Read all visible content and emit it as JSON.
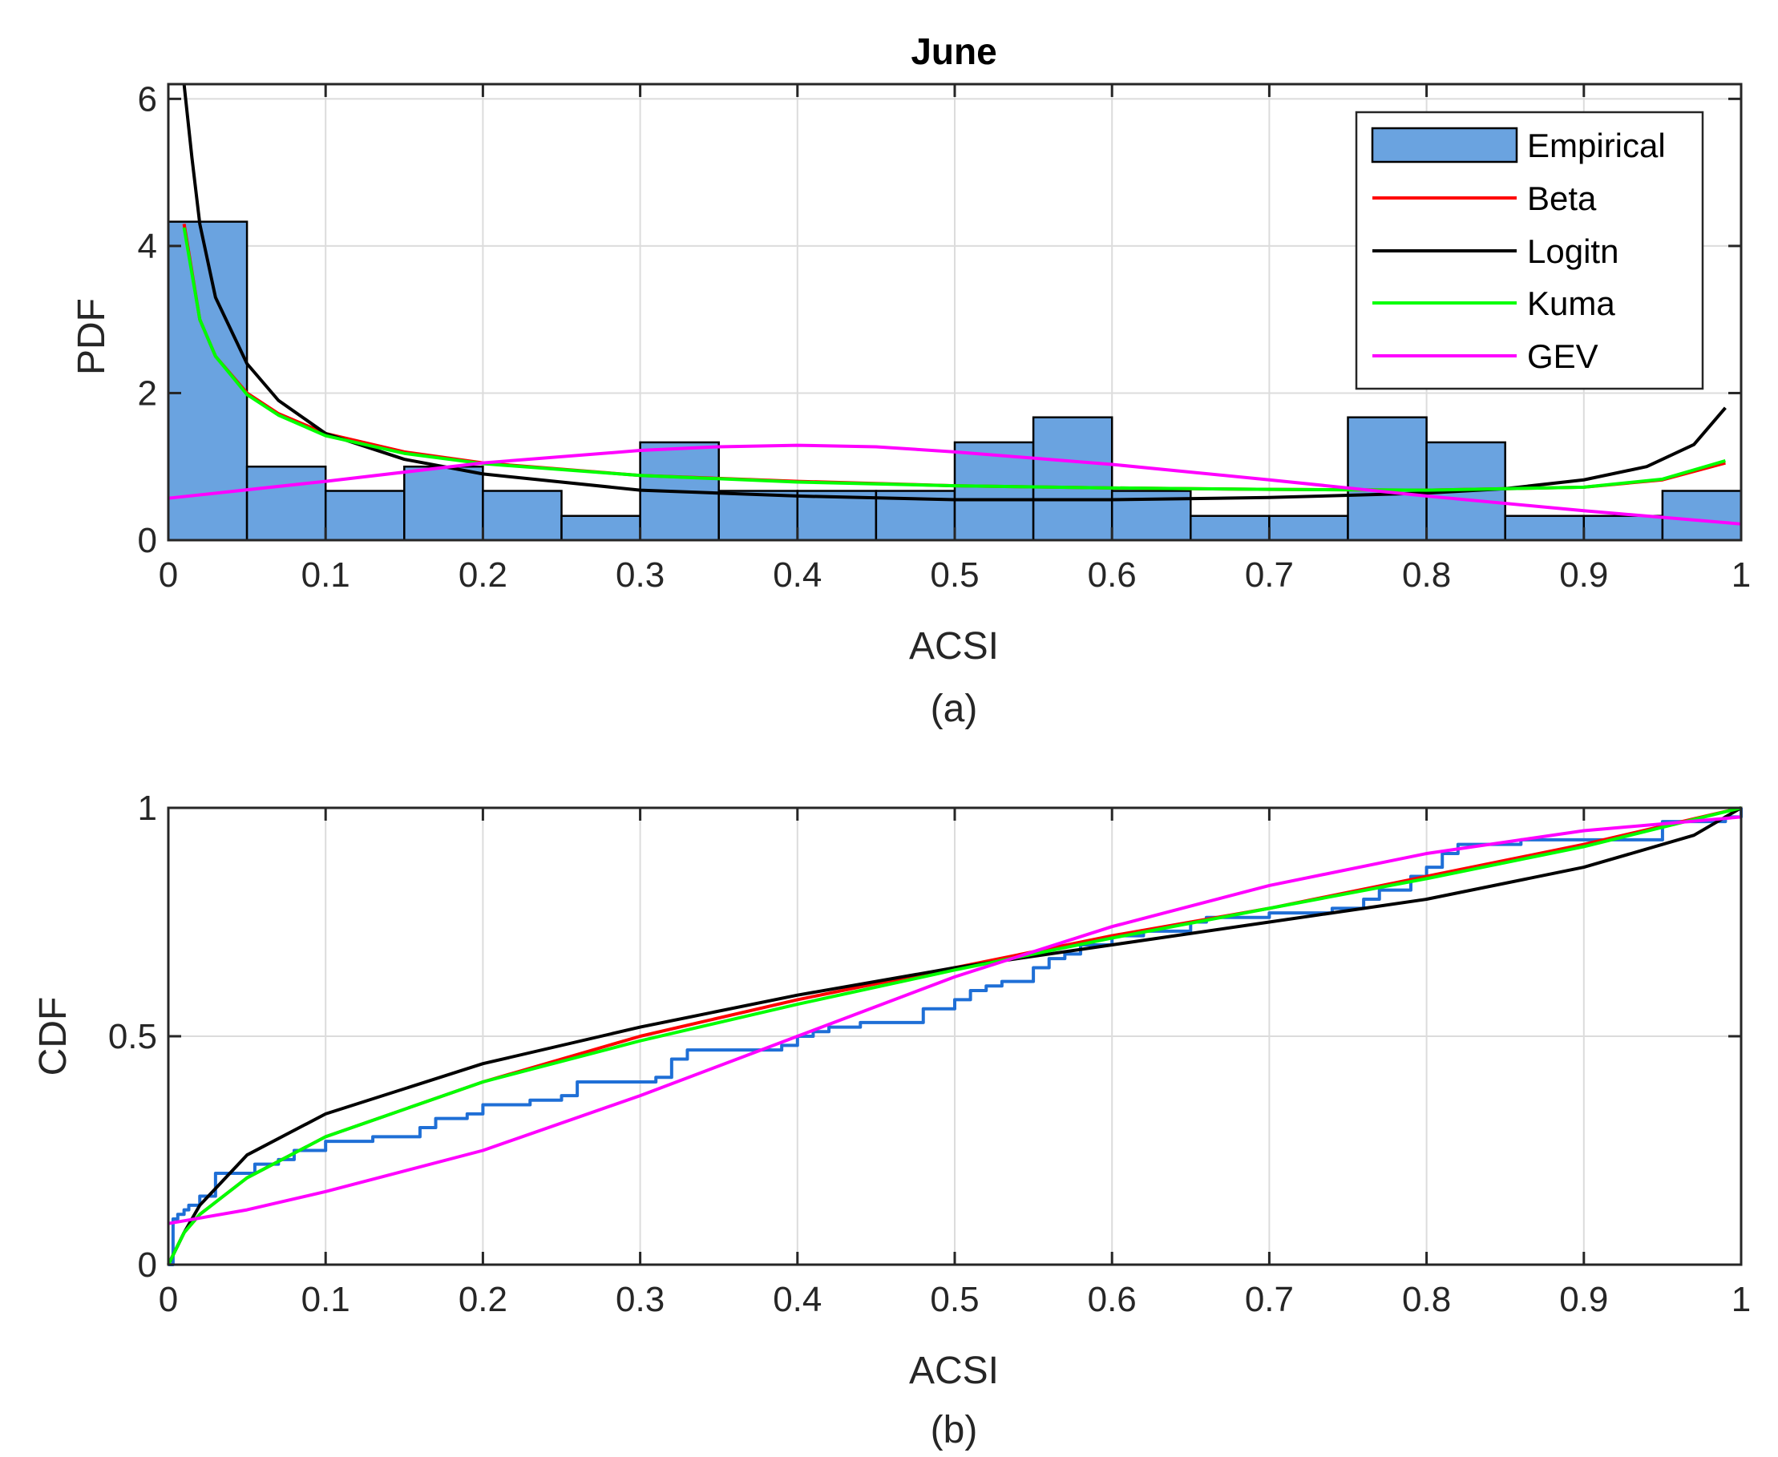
{
  "chart_data": [
    {
      "type": "bar",
      "panel_label": "(a)",
      "title": "June",
      "xlabel": "ACSI",
      "ylabel": "PDF",
      "xlim": [
        0,
        1
      ],
      "ylim": [
        0,
        6.2
      ],
      "xticks": [
        "0",
        "0.1",
        "0.2",
        "0.3",
        "0.4",
        "0.5",
        "0.6",
        "0.7",
        "0.8",
        "0.9",
        "1"
      ],
      "yticks": [
        "0",
        "2",
        "4",
        "6"
      ],
      "grid": true,
      "legend": {
        "position": "top-right",
        "entries": [
          "Empirical",
          "Beta",
          "Logitn",
          "Kuma",
          "GEV"
        ]
      },
      "histogram": {
        "name": "Empirical",
        "bin_edges": [
          0,
          0.05,
          0.1,
          0.15,
          0.2,
          0.25,
          0.3,
          0.35,
          0.4,
          0.45,
          0.5,
          0.55,
          0.6,
          0.65,
          0.7,
          0.75,
          0.8,
          0.85,
          0.9,
          0.95,
          1.0
        ],
        "values": [
          4.33,
          1.0,
          0.67,
          1.0,
          0.67,
          0.33,
          1.33,
          0.67,
          0.67,
          0.67,
          1.33,
          1.67,
          0.67,
          0.33,
          0.33,
          1.67,
          1.33,
          0.33,
          0.33,
          0.67
        ],
        "fill": "#6aa3e0"
      },
      "series": [
        {
          "name": "Beta",
          "color": "#ff0000",
          "x": [
            0.01,
            0.02,
            0.03,
            0.05,
            0.07,
            0.1,
            0.15,
            0.2,
            0.3,
            0.4,
            0.5,
            0.6,
            0.7,
            0.8,
            0.9,
            0.95,
            0.99
          ],
          "y": [
            4.3,
            3.0,
            2.5,
            2.0,
            1.72,
            1.45,
            1.2,
            1.05,
            0.88,
            0.8,
            0.74,
            0.71,
            0.69,
            0.68,
            0.72,
            0.82,
            1.05
          ]
        },
        {
          "name": "Logitn",
          "color": "#000000",
          "x": [
            0.01,
            0.015,
            0.02,
            0.03,
            0.05,
            0.07,
            0.1,
            0.15,
            0.2,
            0.3,
            0.4,
            0.5,
            0.6,
            0.7,
            0.8,
            0.85,
            0.9,
            0.94,
            0.97,
            0.99
          ],
          "y": [
            6.2,
            5.2,
            4.3,
            3.3,
            2.4,
            1.9,
            1.45,
            1.1,
            0.9,
            0.68,
            0.6,
            0.55,
            0.55,
            0.58,
            0.64,
            0.7,
            0.82,
            1.0,
            1.3,
            1.8
          ]
        },
        {
          "name": "Kuma",
          "color": "#00ff00",
          "x": [
            0.01,
            0.02,
            0.03,
            0.05,
            0.07,
            0.1,
            0.15,
            0.2,
            0.3,
            0.4,
            0.5,
            0.6,
            0.7,
            0.8,
            0.9,
            0.95,
            0.99
          ],
          "y": [
            4.25,
            3.0,
            2.5,
            1.98,
            1.7,
            1.42,
            1.18,
            1.04,
            0.88,
            0.79,
            0.74,
            0.71,
            0.69,
            0.68,
            0.72,
            0.83,
            1.08
          ]
        },
        {
          "name": "GEV",
          "color": "#ff00ff",
          "x": [
            0.0,
            0.1,
            0.2,
            0.3,
            0.35,
            0.4,
            0.45,
            0.5,
            0.6,
            0.7,
            0.8,
            0.9,
            1.0
          ],
          "y": [
            0.57,
            0.8,
            1.05,
            1.22,
            1.27,
            1.29,
            1.27,
            1.2,
            1.03,
            0.82,
            0.6,
            0.4,
            0.22
          ]
        }
      ]
    },
    {
      "type": "line",
      "panel_label": "(b)",
      "xlabel": "ACSI",
      "ylabel": "CDF",
      "xlim": [
        0,
        1
      ],
      "ylim": [
        0,
        1
      ],
      "xticks": [
        "0",
        "0.1",
        "0.2",
        "0.3",
        "0.4",
        "0.5",
        "0.6",
        "0.7",
        "0.8",
        "0.9",
        "1"
      ],
      "yticks": [
        "0",
        "0.5",
        "1"
      ],
      "grid": true,
      "series": [
        {
          "name": "Empirical",
          "color": "#1f6fd6",
          "step": true,
          "x": [
            0,
            0.003,
            0.006,
            0.01,
            0.013,
            0.02,
            0.03,
            0.055,
            0.07,
            0.08,
            0.1,
            0.13,
            0.16,
            0.17,
            0.19,
            0.2,
            0.23,
            0.25,
            0.26,
            0.31,
            0.32,
            0.33,
            0.39,
            0.4,
            0.41,
            0.42,
            0.44,
            0.48,
            0.5,
            0.51,
            0.52,
            0.53,
            0.55,
            0.56,
            0.57,
            0.58,
            0.6,
            0.62,
            0.65,
            0.66,
            0.7,
            0.74,
            0.76,
            0.77,
            0.79,
            0.8,
            0.81,
            0.82,
            0.86,
            0.95,
            0.99,
            1.0
          ],
          "y": [
            0.0,
            0.1,
            0.11,
            0.12,
            0.13,
            0.15,
            0.2,
            0.22,
            0.23,
            0.25,
            0.27,
            0.28,
            0.3,
            0.32,
            0.33,
            0.35,
            0.36,
            0.37,
            0.4,
            0.41,
            0.45,
            0.47,
            0.48,
            0.5,
            0.51,
            0.52,
            0.53,
            0.56,
            0.58,
            0.6,
            0.61,
            0.62,
            0.65,
            0.67,
            0.68,
            0.7,
            0.72,
            0.73,
            0.75,
            0.76,
            0.77,
            0.78,
            0.8,
            0.82,
            0.85,
            0.87,
            0.9,
            0.92,
            0.93,
            0.97,
            0.98,
            1.0
          ]
        },
        {
          "name": "Beta",
          "color": "#ff0000",
          "x": [
            0,
            0.01,
            0.02,
            0.05,
            0.1,
            0.2,
            0.3,
            0.4,
            0.5,
            0.6,
            0.7,
            0.8,
            0.9,
            1.0
          ],
          "y": [
            0.0,
            0.07,
            0.11,
            0.19,
            0.28,
            0.4,
            0.5,
            0.58,
            0.65,
            0.72,
            0.78,
            0.85,
            0.92,
            1.0
          ]
        },
        {
          "name": "Logitn",
          "color": "#000000",
          "x": [
            0,
            0.01,
            0.02,
            0.05,
            0.1,
            0.2,
            0.3,
            0.4,
            0.5,
            0.6,
            0.7,
            0.8,
            0.9,
            0.97,
            1.0
          ],
          "y": [
            0.0,
            0.07,
            0.13,
            0.24,
            0.33,
            0.44,
            0.52,
            0.59,
            0.65,
            0.7,
            0.75,
            0.8,
            0.87,
            0.94,
            1.0
          ]
        },
        {
          "name": "Kuma",
          "color": "#00ff00",
          "x": [
            0,
            0.01,
            0.02,
            0.05,
            0.1,
            0.2,
            0.3,
            0.4,
            0.5,
            0.6,
            0.7,
            0.8,
            0.9,
            1.0
          ],
          "y": [
            0.0,
            0.07,
            0.11,
            0.19,
            0.28,
            0.4,
            0.49,
            0.57,
            0.645,
            0.715,
            0.78,
            0.845,
            0.915,
            1.0
          ]
        },
        {
          "name": "GEV",
          "color": "#ff00ff",
          "x": [
            0,
            0.05,
            0.1,
            0.2,
            0.3,
            0.4,
            0.5,
            0.6,
            0.7,
            0.8,
            0.9,
            1.0
          ],
          "y": [
            0.09,
            0.12,
            0.16,
            0.25,
            0.37,
            0.5,
            0.63,
            0.74,
            0.83,
            0.9,
            0.95,
            0.98
          ]
        }
      ]
    }
  ]
}
